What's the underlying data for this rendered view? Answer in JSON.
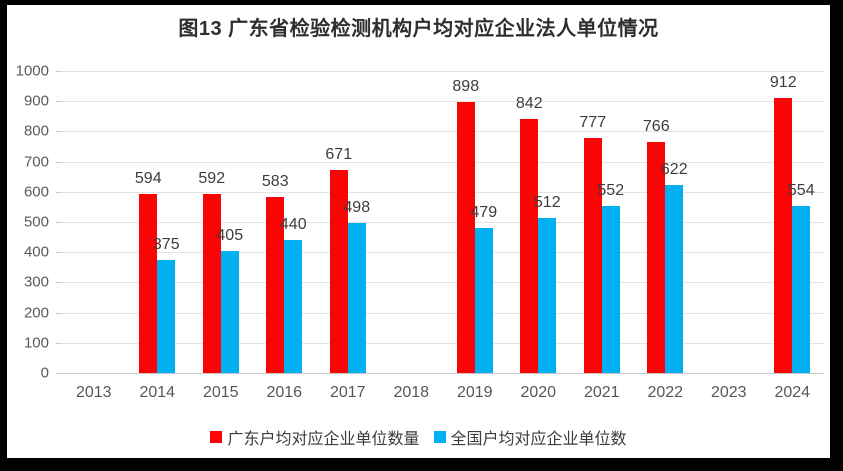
{
  "title": "图13 广东省检验检测机构户均对应企业法人单位情况",
  "chart_data": {
    "type": "bar",
    "title": "图13 广东省检验检测机构户均对应企业法人单位情况",
    "categories": [
      "2013",
      "2014",
      "2015",
      "2016",
      "2017",
      "2018",
      "2019",
      "2020",
      "2021",
      "2022",
      "2023",
      "2024"
    ],
    "series": [
      {
        "key": "guangdong",
        "name": "广东户均对应企业单位数量",
        "color": "#fa0505",
        "values": [
          null,
          594,
          592,
          583,
          671,
          null,
          898,
          842,
          777,
          766,
          null,
          912
        ]
      },
      {
        "key": "national",
        "name": "全国户均对应企业单位数",
        "color": "#00b0f0",
        "values": [
          null,
          375,
          405,
          440,
          498,
          null,
          479,
          512,
          552,
          622,
          null,
          554
        ]
      }
    ],
    "ylim": [
      0,
      1000
    ],
    "yticks": [
      0,
      100,
      200,
      300,
      400,
      500,
      600,
      700,
      800,
      900,
      1000
    ],
    "grid": true,
    "data_labels": true,
    "legend_position": "bottom",
    "xlabel": "",
    "ylabel": ""
  },
  "colors": {
    "frame_border": "#000000",
    "background": "#ffffff",
    "gridline": "#e4e4e4",
    "axis_line": "#c6c6c6",
    "y_tick_label": "#5a5a5a",
    "x_tick_label": "#55575c",
    "data_label": "#3d3d3d",
    "title_text": "#2e2e2e",
    "legend_text": "#3c3c3c"
  }
}
